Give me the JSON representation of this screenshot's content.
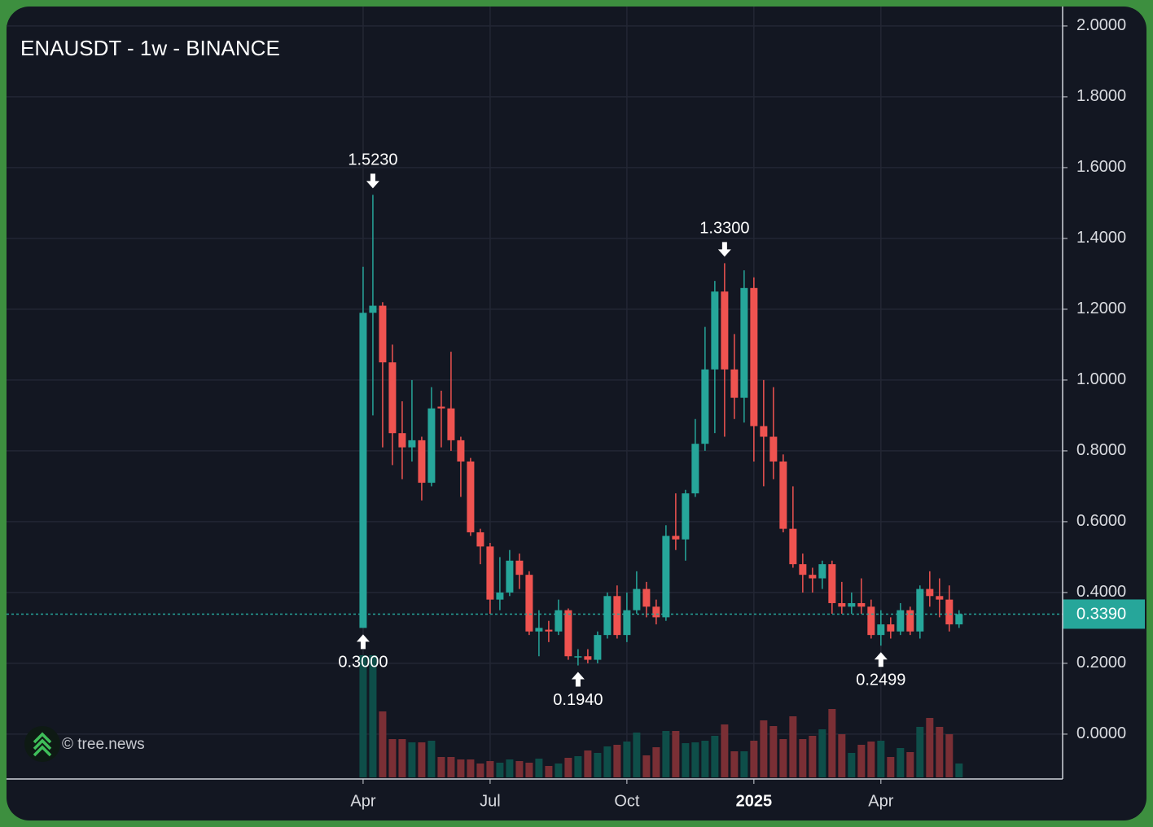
{
  "chart_data": {
    "type": "candlestick",
    "title": "ENAUSDT - 1w - BINANCE",
    "watermark": "© tree.news",
    "x": [
      0,
      1,
      2,
      3,
      4,
      5,
      6,
      7,
      8,
      9,
      10,
      11,
      12,
      13,
      14,
      15,
      16,
      17,
      18,
      19,
      20,
      21,
      22,
      23,
      24,
      25,
      26,
      27,
      28,
      29,
      30,
      31,
      32,
      33,
      34,
      35,
      36,
      37,
      38,
      39,
      40,
      41,
      42,
      43,
      44,
      45,
      46,
      47,
      48,
      49,
      50,
      51,
      52,
      53,
      54,
      55,
      56,
      57,
      58,
      59,
      60,
      61
    ],
    "open": [
      0.3,
      1.19,
      1.21,
      1.05,
      0.85,
      0.81,
      0.83,
      0.71,
      0.925,
      0.92,
      0.83,
      0.77,
      0.57,
      0.53,
      0.38,
      0.4,
      0.49,
      0.45,
      0.29,
      0.295,
      0.29,
      0.35,
      0.22,
      0.22,
      0.21,
      0.28,
      0.39,
      0.28,
      0.35,
      0.41,
      0.36,
      0.33,
      0.56,
      0.55,
      0.68,
      0.82,
      1.03,
      1.25,
      1.03,
      0.95,
      1.26,
      0.87,
      0.84,
      0.77,
      0.58,
      0.48,
      0.45,
      0.44,
      0.48,
      0.37,
      0.36,
      0.37,
      0.36,
      0.28,
      0.31,
      0.29,
      0.35,
      0.29,
      0.41,
      0.39,
      0.38,
      0.31
    ],
    "high": [
      1.32,
      1.523,
      1.22,
      1.1,
      0.94,
      1.0,
      0.84,
      0.98,
      0.97,
      1.08,
      0.84,
      0.78,
      0.58,
      0.54,
      0.5,
      0.52,
      0.51,
      0.46,
      0.35,
      0.32,
      0.38,
      0.355,
      0.24,
      0.24,
      0.29,
      0.4,
      0.42,
      0.4,
      0.46,
      0.43,
      0.38,
      0.59,
      0.68,
      0.69,
      0.89,
      1.15,
      1.28,
      1.33,
      1.13,
      1.31,
      1.29,
      1.0,
      0.98,
      0.79,
      0.7,
      0.51,
      0.47,
      0.49,
      0.49,
      0.43,
      0.4,
      0.44,
      0.38,
      0.35,
      0.33,
      0.37,
      0.36,
      0.42,
      0.46,
      0.44,
      0.42,
      0.35
    ],
    "low": [
      0.3,
      0.9,
      0.81,
      0.76,
      0.72,
      0.77,
      0.66,
      0.7,
      0.81,
      0.8,
      0.67,
      0.56,
      0.48,
      0.34,
      0.35,
      0.39,
      0.41,
      0.28,
      0.22,
      0.26,
      0.28,
      0.21,
      0.194,
      0.2,
      0.2,
      0.27,
      0.27,
      0.26,
      0.34,
      0.33,
      0.31,
      0.32,
      0.52,
      0.49,
      0.67,
      0.8,
      0.85,
      0.84,
      0.89,
      0.88,
      0.77,
      0.7,
      0.72,
      0.57,
      0.47,
      0.4,
      0.4,
      0.41,
      0.34,
      0.34,
      0.34,
      0.34,
      0.27,
      0.2499,
      0.27,
      0.28,
      0.28,
      0.27,
      0.36,
      0.33,
      0.29,
      0.3
    ],
    "close": [
      1.19,
      1.21,
      1.05,
      0.85,
      0.81,
      0.83,
      0.71,
      0.92,
      0.92,
      0.83,
      0.77,
      0.57,
      0.53,
      0.38,
      0.4,
      0.49,
      0.45,
      0.29,
      0.3,
      0.29,
      0.35,
      0.22,
      0.22,
      0.21,
      0.28,
      0.39,
      0.28,
      0.35,
      0.41,
      0.36,
      0.33,
      0.56,
      0.55,
      0.68,
      0.82,
      1.03,
      1.25,
      1.03,
      0.95,
      1.26,
      0.87,
      0.84,
      0.77,
      0.58,
      0.48,
      0.45,
      0.44,
      0.48,
      0.37,
      0.36,
      0.37,
      0.36,
      0.28,
      0.31,
      0.29,
      0.35,
      0.29,
      0.41,
      0.39,
      0.38,
      0.31,
      0.339
    ],
    "volume": [
      150,
      150,
      81,
      47,
      47,
      43,
      43,
      45,
      25,
      25,
      22,
      22,
      17,
      20,
      18,
      22,
      20,
      18,
      23,
      14,
      17,
      24,
      26,
      33,
      30,
      38,
      40,
      44,
      55,
      27,
      37,
      57,
      57,
      42,
      43,
      45,
      51,
      65,
      32,
      32,
      45,
      70,
      63,
      47,
      75,
      47,
      51,
      59,
      84,
      53,
      30,
      40,
      44,
      45,
      25,
      36,
      31,
      62,
      73,
      62,
      53,
      17
    ],
    "up_color": "#26a69a",
    "down_color": "#ef5350",
    "up_volume_color": "#0e4e49",
    "down_volume_color": "#7a2f35",
    "ylim": [
      -0.122,
      2.055
    ],
    "yticks": [
      {
        "value": 0,
        "label": "0.0000"
      },
      {
        "value": 0.2,
        "label": "0.2000"
      },
      {
        "value": 0.4,
        "label": "0.4000"
      },
      {
        "value": 0.6,
        "label": "0.6000"
      },
      {
        "value": 0.8,
        "label": "0.8000"
      },
      {
        "value": 1.0,
        "label": "1.0000"
      },
      {
        "value": 1.2,
        "label": "1.2000"
      },
      {
        "value": 1.4,
        "label": "1.4000"
      },
      {
        "value": 1.6,
        "label": "1.6000"
      },
      {
        "value": 1.8,
        "label": "1.8000"
      },
      {
        "value": 2.0,
        "label": "2.0000"
      }
    ],
    "xlim": [
      -36.5,
      71.6
    ],
    "xticks": [
      {
        "value": 0,
        "label": "Apr"
      },
      {
        "value": 13,
        "label": "Jul"
      },
      {
        "value": 27,
        "label": "Oct"
      },
      {
        "value": 40,
        "label": "2025",
        "bold": true
      },
      {
        "value": 53,
        "label": "Apr"
      }
    ],
    "grid": true,
    "last_price": {
      "value": 0.339,
      "label": "0.3390"
    },
    "annotations": [
      {
        "index": 1,
        "value": 1.523,
        "label": "1.5230",
        "position": "above"
      },
      {
        "index": 0,
        "value": 0.3,
        "label": "0.3000",
        "position": "below"
      },
      {
        "index": 37,
        "value": 1.33,
        "label": "1.3300",
        "position": "above"
      },
      {
        "index": 22,
        "value": 0.194,
        "label": "0.1940",
        "position": "below"
      },
      {
        "index": 53,
        "value": 0.2499,
        "label": "0.2499",
        "position": "below"
      }
    ]
  }
}
